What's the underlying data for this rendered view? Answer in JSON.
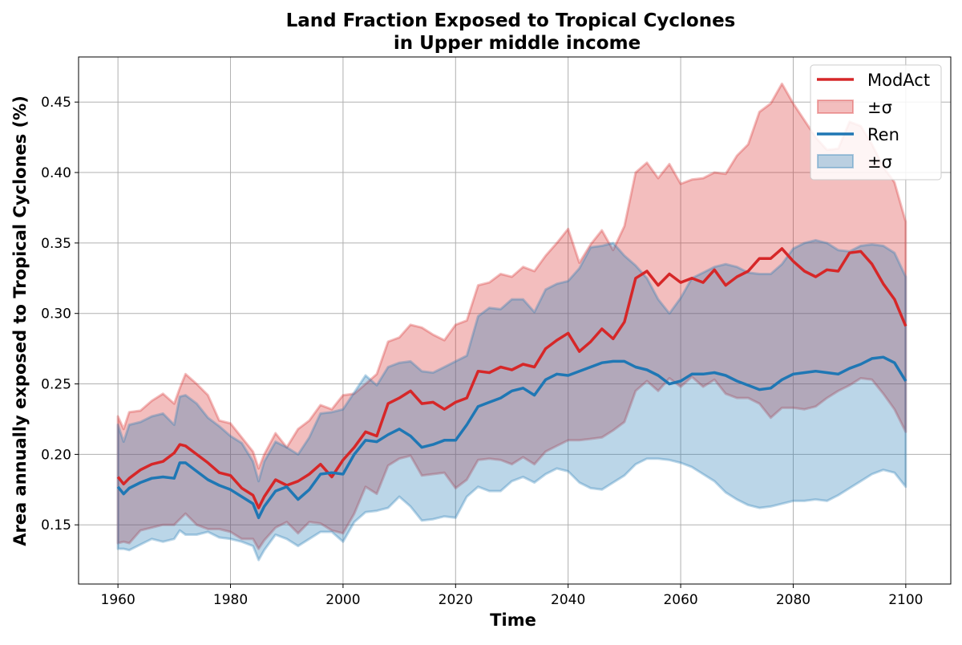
{
  "chart_data": {
    "type": "line",
    "title": "Land Fraction Exposed to Tropical Cyclones",
    "subtitle": "in Upper middle income",
    "xlabel": "Time",
    "ylabel": "Area annually exposed to Tropical Cyclones (%)",
    "xlim": [
      1953,
      2108
    ],
    "ylim": [
      0.108,
      0.482
    ],
    "xticks": [
      1960,
      1980,
      2000,
      2020,
      2040,
      2060,
      2080,
      2100
    ],
    "xtick_labels": [
      "1960",
      "1980",
      "2000",
      "2020",
      "2040",
      "2060",
      "2080",
      "2100"
    ],
    "yticks": [
      0.15,
      0.2,
      0.25,
      0.3,
      0.35,
      0.4,
      0.45
    ],
    "ytick_labels": [
      "0.15",
      "0.20",
      "0.25",
      "0.30",
      "0.35",
      "0.40",
      "0.45"
    ],
    "grid": true,
    "legend_position": "top-right",
    "legend": [
      {
        "label": "ModAct",
        "kind": "line",
        "series": 0
      },
      {
        "label": "±σ",
        "kind": "band",
        "series": 0
      },
      {
        "label": "Ren",
        "kind": "line",
        "series": 1
      },
      {
        "label": "±σ",
        "kind": "band",
        "series": 1
      }
    ],
    "series": [
      {
        "name": "ModAct",
        "color": "#d62728",
        "x": [
          1960,
          1961,
          1962,
          1964,
          1966,
          1968,
          1970,
          1971,
          1972,
          1974,
          1976,
          1978,
          1980,
          1982,
          1984,
          1985,
          1986,
          1988,
          1990,
          1992,
          1994,
          1996,
          1998,
          2000,
          2002,
          2004,
          2006,
          2008,
          2010,
          2012,
          2014,
          2016,
          2018,
          2020,
          2022,
          2024,
          2026,
          2028,
          2030,
          2032,
          2034,
          2036,
          2038,
          2040,
          2042,
          2044,
          2046,
          2048,
          2050,
          2052,
          2054,
          2056,
          2058,
          2060,
          2062,
          2064,
          2066,
          2068,
          2070,
          2072,
          2074,
          2076,
          2078,
          2080,
          2082,
          2084,
          2086,
          2088,
          2090,
          2092,
          2094,
          2096,
          2098,
          2100
        ],
        "mean": [
          0.184,
          0.179,
          0.183,
          0.189,
          0.193,
          0.195,
          0.201,
          0.207,
          0.206,
          0.2,
          0.194,
          0.187,
          0.185,
          0.176,
          0.171,
          0.162,
          0.17,
          0.182,
          0.178,
          0.181,
          0.186,
          0.193,
          0.184,
          0.196,
          0.205,
          0.216,
          0.213,
          0.236,
          0.24,
          0.245,
          0.236,
          0.237,
          0.232,
          0.237,
          0.24,
          0.259,
          0.258,
          0.262,
          0.26,
          0.264,
          0.262,
          0.275,
          0.281,
          0.286,
          0.273,
          0.28,
          0.289,
          0.282,
          0.294,
          0.325,
          0.33,
          0.32,
          0.328,
          0.322,
          0.325,
          0.322,
          0.331,
          0.32,
          0.326,
          0.33,
          0.339,
          0.339,
          0.346,
          0.337,
          0.33,
          0.326,
          0.331,
          0.33,
          0.343,
          0.344,
          0.335,
          0.321,
          0.31,
          0.291
        ],
        "upper": [
          0.227,
          0.218,
          0.23,
          0.231,
          0.238,
          0.243,
          0.236,
          0.247,
          0.257,
          0.25,
          0.242,
          0.224,
          0.222,
          0.212,
          0.202,
          0.19,
          0.2,
          0.215,
          0.205,
          0.218,
          0.224,
          0.235,
          0.232,
          0.242,
          0.243,
          0.25,
          0.257,
          0.28,
          0.283,
          0.292,
          0.29,
          0.285,
          0.281,
          0.292,
          0.295,
          0.32,
          0.322,
          0.328,
          0.326,
          0.333,
          0.33,
          0.341,
          0.35,
          0.36,
          0.336,
          0.349,
          0.359,
          0.345,
          0.362,
          0.4,
          0.407,
          0.396,
          0.406,
          0.392,
          0.395,
          0.396,
          0.4,
          0.399,
          0.412,
          0.42,
          0.443,
          0.449,
          0.463,
          0.449,
          0.437,
          0.425,
          0.416,
          0.417,
          0.436,
          0.433,
          0.42,
          0.404,
          0.393,
          0.365
        ],
        "lower": [
          0.137,
          0.138,
          0.137,
          0.146,
          0.148,
          0.15,
          0.15,
          0.154,
          0.158,
          0.15,
          0.147,
          0.147,
          0.145,
          0.14,
          0.14,
          0.133,
          0.139,
          0.148,
          0.152,
          0.144,
          0.152,
          0.151,
          0.146,
          0.144,
          0.158,
          0.177,
          0.172,
          0.192,
          0.197,
          0.199,
          0.185,
          0.186,
          0.187,
          0.176,
          0.182,
          0.196,
          0.197,
          0.196,
          0.193,
          0.198,
          0.193,
          0.202,
          0.206,
          0.21,
          0.21,
          0.211,
          0.212,
          0.217,
          0.223,
          0.245,
          0.252,
          0.245,
          0.254,
          0.248,
          0.255,
          0.248,
          0.253,
          0.243,
          0.24,
          0.24,
          0.236,
          0.226,
          0.233,
          0.233,
          0.232,
          0.234,
          0.24,
          0.245,
          0.249,
          0.254,
          0.253,
          0.243,
          0.232,
          0.216
        ]
      },
      {
        "name": "Ren",
        "color": "#1f77b4",
        "x": [
          1960,
          1961,
          1962,
          1964,
          1966,
          1968,
          1970,
          1971,
          1972,
          1974,
          1976,
          1978,
          1980,
          1982,
          1984,
          1985,
          1986,
          1988,
          1990,
          1992,
          1994,
          1996,
          1998,
          2000,
          2002,
          2004,
          2006,
          2008,
          2010,
          2012,
          2014,
          2016,
          2018,
          2020,
          2022,
          2024,
          2026,
          2028,
          2030,
          2032,
          2034,
          2036,
          2038,
          2040,
          2042,
          2044,
          2046,
          2048,
          2050,
          2052,
          2054,
          2056,
          2058,
          2060,
          2062,
          2064,
          2066,
          2068,
          2070,
          2072,
          2074,
          2076,
          2078,
          2080,
          2082,
          2084,
          2086,
          2088,
          2090,
          2092,
          2094,
          2096,
          2098,
          2100
        ],
        "mean": [
          0.177,
          0.172,
          0.176,
          0.18,
          0.183,
          0.184,
          0.183,
          0.194,
          0.194,
          0.188,
          0.182,
          0.178,
          0.175,
          0.17,
          0.165,
          0.155,
          0.163,
          0.174,
          0.177,
          0.168,
          0.175,
          0.186,
          0.187,
          0.186,
          0.2,
          0.21,
          0.209,
          0.214,
          0.218,
          0.213,
          0.205,
          0.207,
          0.21,
          0.21,
          0.221,
          0.234,
          0.237,
          0.24,
          0.245,
          0.247,
          0.242,
          0.253,
          0.257,
          0.256,
          0.259,
          0.262,
          0.265,
          0.266,
          0.266,
          0.262,
          0.26,
          0.256,
          0.25,
          0.252,
          0.257,
          0.257,
          0.258,
          0.256,
          0.252,
          0.249,
          0.246,
          0.247,
          0.253,
          0.257,
          0.258,
          0.259,
          0.258,
          0.257,
          0.261,
          0.264,
          0.268,
          0.269,
          0.265,
          0.252
        ],
        "upper": [
          0.221,
          0.209,
          0.221,
          0.223,
          0.227,
          0.229,
          0.221,
          0.241,
          0.242,
          0.236,
          0.226,
          0.22,
          0.213,
          0.208,
          0.195,
          0.181,
          0.195,
          0.209,
          0.205,
          0.2,
          0.212,
          0.229,
          0.23,
          0.232,
          0.244,
          0.256,
          0.249,
          0.262,
          0.265,
          0.266,
          0.259,
          0.258,
          0.262,
          0.266,
          0.27,
          0.298,
          0.304,
          0.303,
          0.31,
          0.31,
          0.301,
          0.317,
          0.321,
          0.323,
          0.332,
          0.347,
          0.348,
          0.35,
          0.341,
          0.334,
          0.325,
          0.31,
          0.3,
          0.311,
          0.325,
          0.329,
          0.333,
          0.335,
          0.333,
          0.329,
          0.328,
          0.328,
          0.335,
          0.346,
          0.35,
          0.352,
          0.35,
          0.345,
          0.344,
          0.348,
          0.349,
          0.348,
          0.343,
          0.326
        ],
        "lower": [
          0.133,
          0.133,
          0.132,
          0.136,
          0.14,
          0.138,
          0.14,
          0.146,
          0.143,
          0.143,
          0.145,
          0.141,
          0.14,
          0.138,
          0.135,
          0.125,
          0.132,
          0.143,
          0.14,
          0.135,
          0.14,
          0.145,
          0.145,
          0.138,
          0.152,
          0.159,
          0.16,
          0.162,
          0.17,
          0.163,
          0.153,
          0.154,
          0.156,
          0.155,
          0.17,
          0.177,
          0.174,
          0.174,
          0.181,
          0.184,
          0.18,
          0.186,
          0.19,
          0.188,
          0.18,
          0.176,
          0.175,
          0.18,
          0.185,
          0.193,
          0.197,
          0.197,
          0.196,
          0.194,
          0.191,
          0.186,
          0.181,
          0.173,
          0.168,
          0.164,
          0.162,
          0.163,
          0.165,
          0.167,
          0.167,
          0.168,
          0.167,
          0.171,
          0.176,
          0.181,
          0.186,
          0.189,
          0.187,
          0.177
        ]
      }
    ]
  }
}
